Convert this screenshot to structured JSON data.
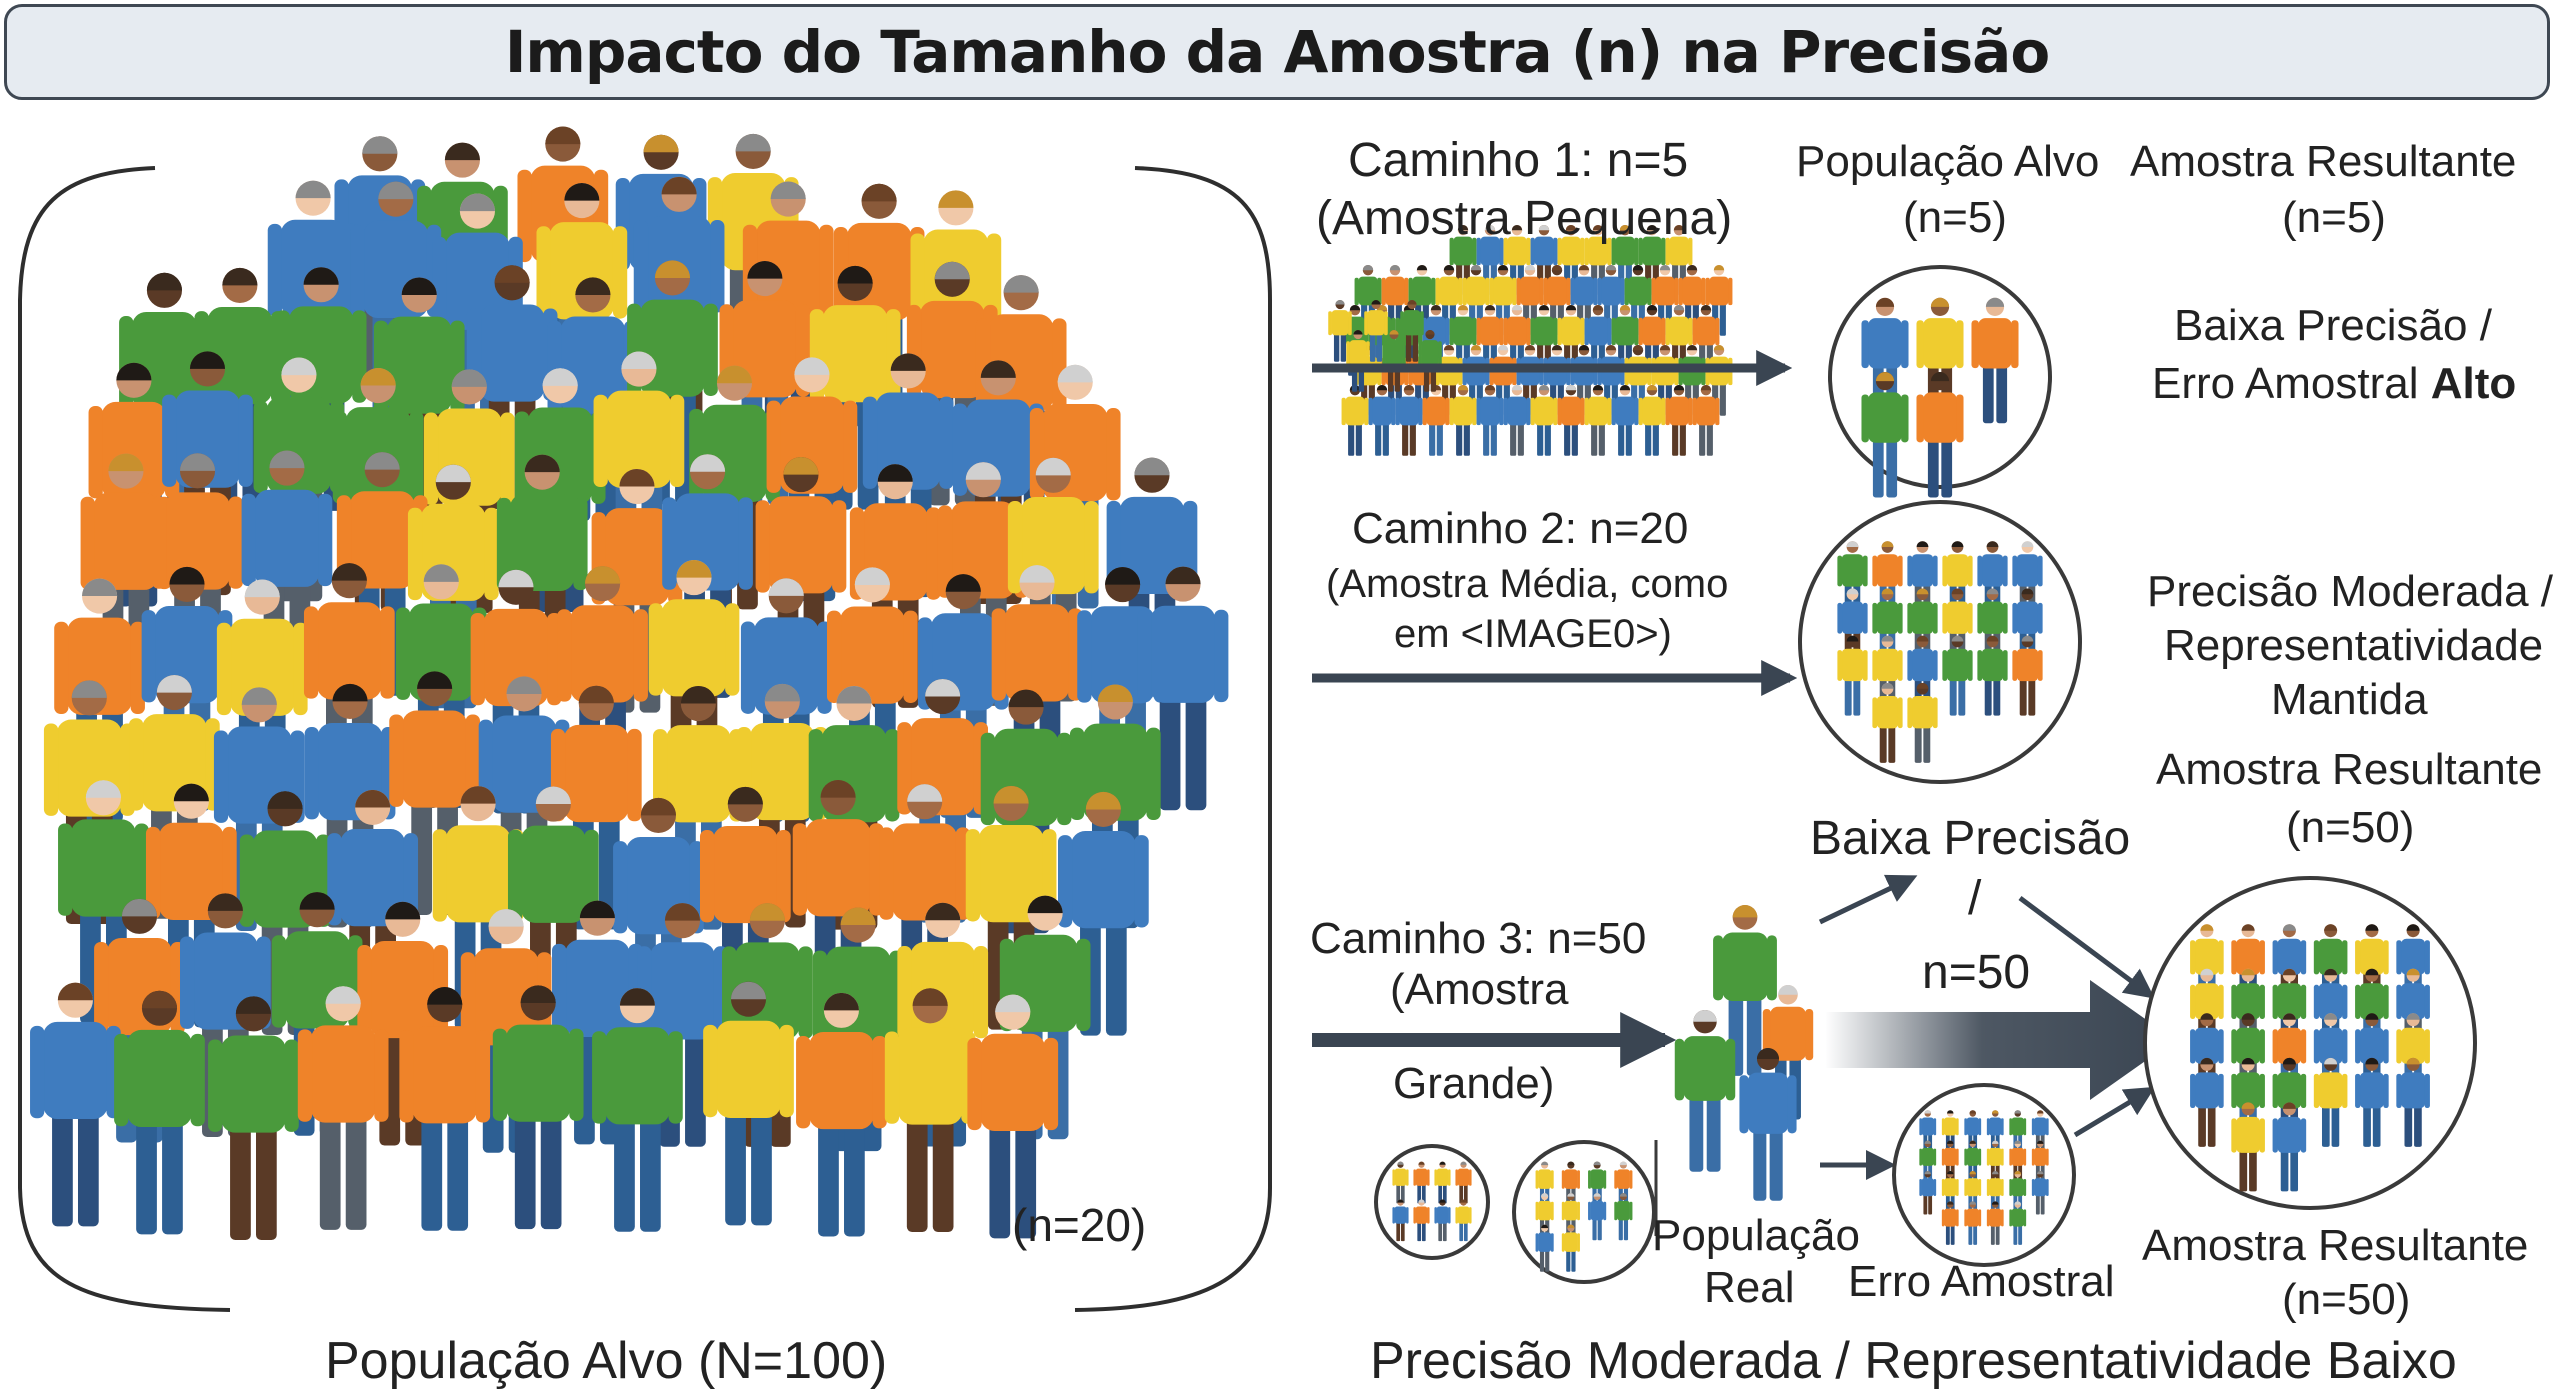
{
  "title": "Impacto do Tamanho da Amostra (n) na Precisão",
  "colors": {
    "blue": "#3f7cbf",
    "orange": "#ef8329",
    "green": "#4a9a3c",
    "yellow": "#efcc2f",
    "arrow": "#3a4552",
    "line": "#3a3a3a"
  },
  "population": {
    "label": "População Alvo (N=100)",
    "inner_label": "(n=20)"
  },
  "path1": {
    "label_line1": "Caminho 1: n=5",
    "label_line2": "(Amostra Pequena)",
    "target_line1": "População Alvo",
    "target_line2": "(n=5)",
    "result_line1": "Amostra Resultante",
    "result_line2": "(n=5)",
    "precision_line1": "Baixa Precisão /",
    "precision_line2_prefix": "Erro Amostral ",
    "precision_line2_bold": "Alto"
  },
  "path2": {
    "label_line1": "Caminho 2: n=20",
    "label_line2": "(Amostra Média, como",
    "label_line3": "em <IMAGE0>)",
    "precision_line1": "Precisão Moderada /",
    "precision_line2": "Representatividade",
    "precision_line3": "Mantida"
  },
  "path3": {
    "label_line1": "Caminho 3: n=50",
    "label_line2": "(Amostra",
    "label_line3": "Grande)",
    "real_line1": "População",
    "real_line2": "Real",
    "low_line1": "Baixa Precisão",
    "low_line2": "/",
    "low_line3": "n=50",
    "error_label": "Erro Amostral",
    "result_top_line1": "Amostra Resultante",
    "result_top_line2": "(n=50)",
    "result_bottom_line1": "Amostra Resultante",
    "result_bottom_line2": "(n=50)"
  },
  "footer_right": "Precisão Moderada / Representatividade Baixo"
}
